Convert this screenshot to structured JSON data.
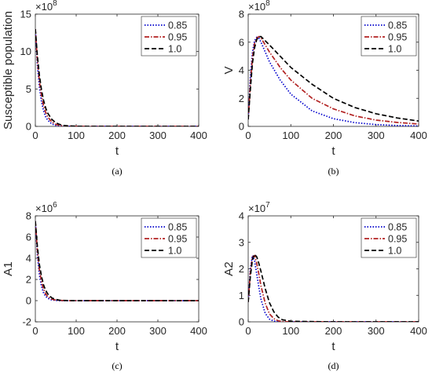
{
  "legend_position": "top-right",
  "chart_data": [
    {
      "type": "line",
      "title": "",
      "xlabel": "t",
      "ylabel": "Susceptible population",
      "y_exponent": "×10",
      "y_exponent_power": "8",
      "caption": "(a)",
      "xlim": [
        0,
        400
      ],
      "ylim": [
        0,
        15
      ],
      "xticks": [
        "0",
        "100",
        "200",
        "300",
        "400"
      ],
      "yticks": [
        "0",
        "5",
        "10",
        "15"
      ],
      "grid": false,
      "series": [
        {
          "name": "0.85",
          "color": "#0000cc",
          "dash": "1.5,2",
          "x": [
            0,
            5,
            10,
            15,
            20,
            25,
            30,
            40,
            50,
            60,
            70,
            80,
            100,
            150,
            200,
            300,
            400
          ],
          "y": [
            13,
            8.2,
            5.2,
            3.3,
            2.1,
            1.3,
            0.85,
            0.34,
            0.14,
            0.05,
            0.02,
            0.01,
            0,
            0,
            0,
            0,
            0
          ]
        },
        {
          "name": "0.95",
          "color": "#b22222",
          "dash": "6,2,1.5,2",
          "x": [
            0,
            5,
            10,
            15,
            20,
            25,
            30,
            40,
            50,
            60,
            70,
            80,
            100,
            150,
            200,
            300,
            400
          ],
          "y": [
            13,
            8.8,
            6.0,
            4.1,
            2.8,
            1.9,
            1.3,
            0.6,
            0.27,
            0.12,
            0.06,
            0.03,
            0.01,
            0,
            0,
            0,
            0
          ]
        },
        {
          "name": "1.0",
          "color": "#000000",
          "dash": "6,3",
          "x": [
            0,
            5,
            10,
            15,
            20,
            25,
            30,
            40,
            50,
            60,
            70,
            80,
            100,
            150,
            200,
            300,
            400
          ],
          "y": [
            13,
            9.4,
            6.8,
            4.9,
            3.5,
            2.5,
            1.8,
            0.95,
            0.49,
            0.25,
            0.13,
            0.07,
            0.02,
            0,
            0,
            0,
            0
          ]
        }
      ]
    },
    {
      "type": "line",
      "title": "",
      "xlabel": "t",
      "ylabel": "V",
      "y_exponent": "×10",
      "y_exponent_power": "8",
      "caption": "(b)",
      "xlim": [
        0,
        400
      ],
      "ylim": [
        0,
        8
      ],
      "xticks": [
        "0",
        "100",
        "200",
        "300",
        "400"
      ],
      "yticks": [
        "0",
        "2",
        "4",
        "6",
        "8"
      ],
      "grid": false,
      "series": [
        {
          "name": "0.85",
          "color": "#0000cc",
          "dash": "1.5,2",
          "x": [
            0,
            5,
            10,
            15,
            20,
            25,
            30,
            50,
            75,
            100,
            150,
            200,
            250,
            300,
            350,
            400
          ],
          "y": [
            0.5,
            3.5,
            5.3,
            6.1,
            6.35,
            6.3,
            6.0,
            4.6,
            3.3,
            2.3,
            1.1,
            0.55,
            0.27,
            0.13,
            0.06,
            0.03
          ]
        },
        {
          "name": "0.95",
          "color": "#b22222",
          "dash": "6,2,1.5,2",
          "x": [
            0,
            5,
            10,
            15,
            20,
            25,
            30,
            50,
            75,
            100,
            150,
            200,
            250,
            300,
            350,
            400
          ],
          "y": [
            0.5,
            3.0,
            4.9,
            5.9,
            6.3,
            6.4,
            6.3,
            5.3,
            4.2,
            3.3,
            2.0,
            1.25,
            0.75,
            0.45,
            0.28,
            0.17
          ]
        },
        {
          "name": "1.0",
          "color": "#000000",
          "dash": "6,3",
          "x": [
            0,
            5,
            10,
            15,
            20,
            25,
            30,
            50,
            75,
            100,
            150,
            200,
            250,
            300,
            350,
            400
          ],
          "y": [
            0.5,
            2.6,
            4.5,
            5.6,
            6.2,
            6.4,
            6.4,
            5.8,
            5.0,
            4.2,
            3.0,
            2.0,
            1.35,
            0.9,
            0.6,
            0.38
          ]
        }
      ]
    },
    {
      "type": "line",
      "title": "",
      "xlabel": "t",
      "ylabel": "A1",
      "y_exponent": "×10",
      "y_exponent_power": "6",
      "caption": "(c)",
      "xlim": [
        0,
        400
      ],
      "ylim": [
        -2,
        8
      ],
      "xticks": [
        "0",
        "100",
        "200",
        "300",
        "400"
      ],
      "yticks": [
        "-2",
        "0",
        "2",
        "4",
        "6",
        "8"
      ],
      "grid": false,
      "series": [
        {
          "name": "0.85",
          "color": "#0000cc",
          "dash": "1.5,2",
          "x": [
            0,
            5,
            10,
            15,
            20,
            25,
            30,
            40,
            50,
            60,
            80,
            100,
            200,
            300,
            400
          ],
          "y": [
            7.5,
            4.3,
            2.4,
            1.35,
            0.75,
            0.42,
            0.23,
            0.07,
            0.02,
            0,
            0,
            0,
            0,
            0,
            0
          ]
        },
        {
          "name": "0.95",
          "color": "#b22222",
          "dash": "6,2,1.5,2",
          "x": [
            0,
            5,
            10,
            15,
            20,
            25,
            30,
            40,
            50,
            60,
            80,
            100,
            200,
            300,
            400
          ],
          "y": [
            7.5,
            4.7,
            2.9,
            1.8,
            1.1,
            0.65,
            0.4,
            0.14,
            0.05,
            0.02,
            0,
            0,
            0,
            0,
            0
          ]
        },
        {
          "name": "1.0",
          "color": "#000000",
          "dash": "6,3",
          "x": [
            0,
            5,
            10,
            15,
            20,
            25,
            30,
            40,
            50,
            60,
            80,
            100,
            200,
            300,
            400
          ],
          "y": [
            7.5,
            5.1,
            3.4,
            2.3,
            1.5,
            1.0,
            0.65,
            0.27,
            0.11,
            0.04,
            0.01,
            0,
            0,
            0,
            0
          ]
        }
      ]
    },
    {
      "type": "line",
      "title": "",
      "xlabel": "t",
      "ylabel": "A2",
      "y_exponent": "×10",
      "y_exponent_power": "7",
      "caption": "(d)",
      "xlim": [
        0,
        400
      ],
      "ylim": [
        0,
        4
      ],
      "xticks": [
        "0",
        "100",
        "200",
        "300",
        "400"
      ],
      "yticks": [
        "0",
        "1",
        "2",
        "3",
        "4"
      ],
      "grid": false,
      "series": [
        {
          "name": "0.85",
          "color": "#0000cc",
          "dash": "1.5,2",
          "x": [
            0,
            5,
            10,
            15,
            20,
            25,
            30,
            40,
            50,
            60,
            70,
            80,
            100,
            200,
            300,
            400
          ],
          "y": [
            0.75,
            2.0,
            2.5,
            2.3,
            1.8,
            1.3,
            0.85,
            0.32,
            0.1,
            0.03,
            0.01,
            0,
            0,
            0,
            0,
            0
          ]
        },
        {
          "name": "0.95",
          "color": "#b22222",
          "dash": "6,2,1.5,2",
          "x": [
            0,
            5,
            10,
            15,
            20,
            25,
            30,
            40,
            50,
            60,
            70,
            80,
            100,
            200,
            300,
            400
          ],
          "y": [
            0.75,
            1.85,
            2.45,
            2.5,
            2.2,
            1.8,
            1.35,
            0.7,
            0.3,
            0.12,
            0.04,
            0.01,
            0,
            0,
            0,
            0
          ]
        },
        {
          "name": "1.0",
          "color": "#000000",
          "dash": "6,3",
          "x": [
            0,
            5,
            10,
            15,
            20,
            25,
            30,
            40,
            50,
            60,
            70,
            80,
            100,
            200,
            300,
            400
          ],
          "y": [
            0.75,
            1.7,
            2.35,
            2.55,
            2.45,
            2.2,
            1.9,
            1.25,
            0.72,
            0.38,
            0.18,
            0.08,
            0.02,
            0,
            0,
            0
          ]
        }
      ]
    }
  ]
}
